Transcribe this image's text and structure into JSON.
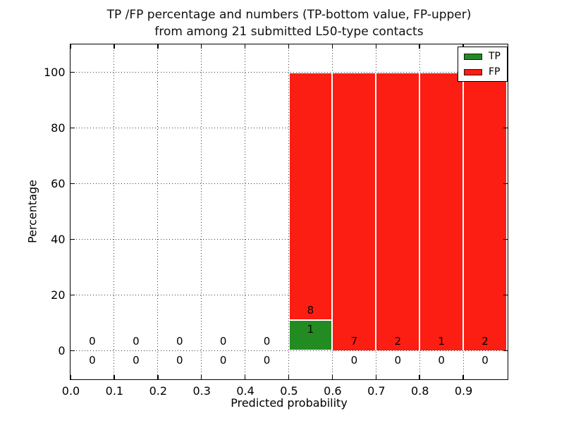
{
  "chart_data": {
    "type": "bar",
    "stacked": true,
    "orientation": "vertical",
    "title_line1": "TP /FP percentage and numbers (TP-bottom value, FP-upper)",
    "title_line2": "from among 21 submitted L50-type contacts",
    "xlabel": "Predicted probability",
    "ylabel": "Percentage",
    "total_submitted_contacts": 21,
    "xlim": [
      0.0,
      1.0
    ],
    "ylim": [
      -10,
      110
    ],
    "x_ticks": [
      0.0,
      0.1,
      0.2,
      0.3,
      0.4,
      0.5,
      0.6,
      0.7,
      0.8,
      0.9
    ],
    "x_tick_labels": [
      "0.0",
      "0.1",
      "0.2",
      "0.3",
      "0.4",
      "0.5",
      "0.6",
      "0.7",
      "0.8",
      "0.9"
    ],
    "y_ticks": [
      0,
      20,
      40,
      60,
      80,
      100
    ],
    "y_tick_labels": [
      "0",
      "20",
      "40",
      "60",
      "80",
      "100"
    ],
    "grid": true,
    "grid_style": "dotted",
    "bin_width": 0.1,
    "annotation_offset_pct": 3.5,
    "colors": {
      "tp": "#228B22",
      "fp": "#FC1D13",
      "text": "#000000",
      "grid": "#3c3c3c",
      "background": "#ffffff"
    },
    "legend": {
      "position": "upper right",
      "entries": [
        {
          "label": "TP",
          "color": "#228B22"
        },
        {
          "label": "FP",
          "color": "#FC1D13"
        }
      ]
    },
    "bins": [
      {
        "x0": 0.0,
        "x1": 0.1,
        "tp_count": 0,
        "fp_count": 0,
        "tp_pct": 0,
        "fp_pct": 0
      },
      {
        "x0": 0.1,
        "x1": 0.2,
        "tp_count": 0,
        "fp_count": 0,
        "tp_pct": 0,
        "fp_pct": 0
      },
      {
        "x0": 0.2,
        "x1": 0.3,
        "tp_count": 0,
        "fp_count": 0,
        "tp_pct": 0,
        "fp_pct": 0
      },
      {
        "x0": 0.3,
        "x1": 0.4,
        "tp_count": 0,
        "fp_count": 0,
        "tp_pct": 0,
        "fp_pct": 0
      },
      {
        "x0": 0.4,
        "x1": 0.5,
        "tp_count": 0,
        "fp_count": 0,
        "tp_pct": 0,
        "fp_pct": 0
      },
      {
        "x0": 0.5,
        "x1": 0.6,
        "tp_count": 1,
        "fp_count": 8,
        "tp_pct": 11.11,
        "fp_pct": 88.89
      },
      {
        "x0": 0.6,
        "x1": 0.7,
        "tp_count": 0,
        "fp_count": 7,
        "tp_pct": 0,
        "fp_pct": 100
      },
      {
        "x0": 0.7,
        "x1": 0.8,
        "tp_count": 0,
        "fp_count": 2,
        "tp_pct": 0,
        "fp_pct": 100
      },
      {
        "x0": 0.8,
        "x1": 0.9,
        "tp_count": 0,
        "fp_count": 1,
        "tp_pct": 0,
        "fp_pct": 100
      },
      {
        "x0": 0.9,
        "x1": 1.0,
        "tp_count": 0,
        "fp_count": 2,
        "tp_pct": 0,
        "fp_pct": 100
      }
    ]
  }
}
